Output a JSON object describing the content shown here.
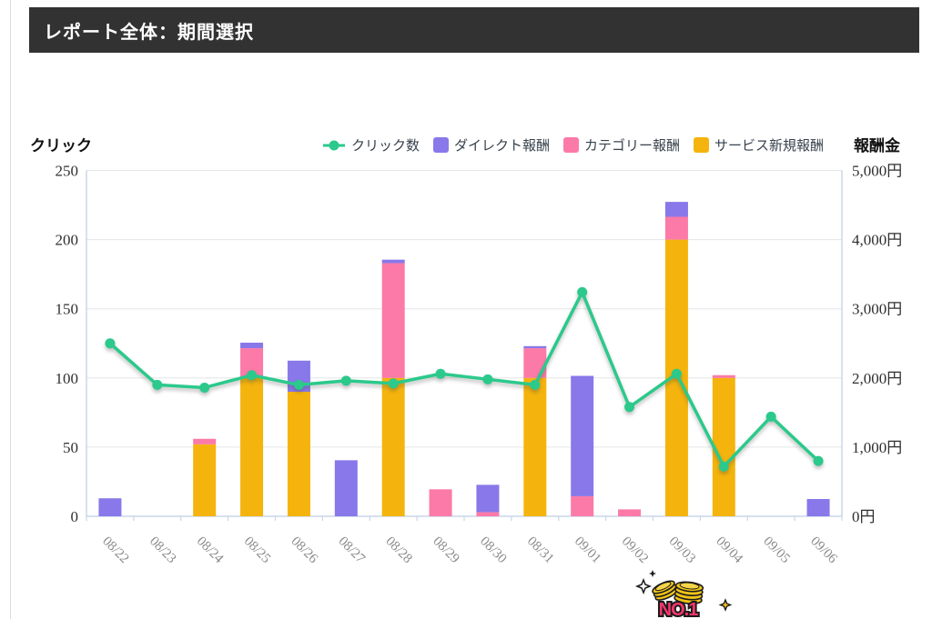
{
  "header": {
    "title": "レポート全体：期間選択",
    "bg": "#323232",
    "text_color": "#ffffff"
  },
  "badge": {
    "text": "NO.1",
    "text_color": "#f5356b",
    "coin_color": "#f0c419"
  },
  "colors": {
    "clicks_line": "#2bc98b",
    "direct_bar": "#8878ea",
    "category_bar": "#fb7aa8",
    "service_bar": "#f5b40d",
    "axis_line": "#c9d5ea",
    "gridline": "#e4e6e8",
    "date_label": "#8a8a8a"
  },
  "chart_data": {
    "type": "combo-line-stacked-bar",
    "legend_position": "top",
    "grid": "horizontal-only",
    "categories": [
      "08/22",
      "08/23",
      "08/24",
      "08/25",
      "08/26",
      "08/27",
      "08/28",
      "08/29",
      "08/30",
      "08/31",
      "09/01",
      "09/02",
      "09/03",
      "09/04",
      "09/05",
      "09/06"
    ],
    "left_axis": {
      "title": "クリック",
      "max": 250,
      "ticks": [
        0,
        50,
        100,
        150,
        200,
        250
      ]
    },
    "right_axis": {
      "title": "報酬金",
      "max": 5000,
      "tick_values": [
        0,
        1000,
        2000,
        3000,
        4000,
        5000
      ],
      "tick_labels": [
        "0円",
        "1,000円",
        "2,000円",
        "3,000円",
        "4,000円",
        "5,000円"
      ]
    },
    "series": [
      {
        "name": "クリック数",
        "type": "line",
        "axis": "left",
        "color": "#2bc98b",
        "values": [
          125,
          95,
          93,
          102,
          95,
          98,
          96,
          103,
          99,
          95,
          162,
          79,
          103,
          36,
          72,
          40
        ]
      },
      {
        "name": "ダイレクト報酬",
        "type": "bar",
        "axis": "right",
        "color": "#8878ea",
        "stack_index": 3,
        "values": [
          260,
          0,
          0,
          80,
          450,
          810,
          50,
          0,
          395,
          30,
          1740,
          0,
          215,
          0,
          0,
          250
        ]
      },
      {
        "name": "カテゴリー報酬",
        "type": "bar",
        "axis": "right",
        "color": "#fb7aa8",
        "stack_index": 2,
        "values": [
          0,
          0,
          80,
          410,
          0,
          0,
          1660,
          390,
          60,
          430,
          290,
          100,
          330,
          40,
          0,
          0
        ]
      },
      {
        "name": "サービス新規報酬",
        "type": "bar",
        "axis": "right",
        "color": "#f5b40d",
        "stack_index": 1,
        "values": [
          0,
          0,
          1040,
          2020,
          1800,
          0,
          2000,
          0,
          0,
          2000,
          0,
          0,
          4000,
          2000,
          0,
          0
        ]
      }
    ]
  }
}
